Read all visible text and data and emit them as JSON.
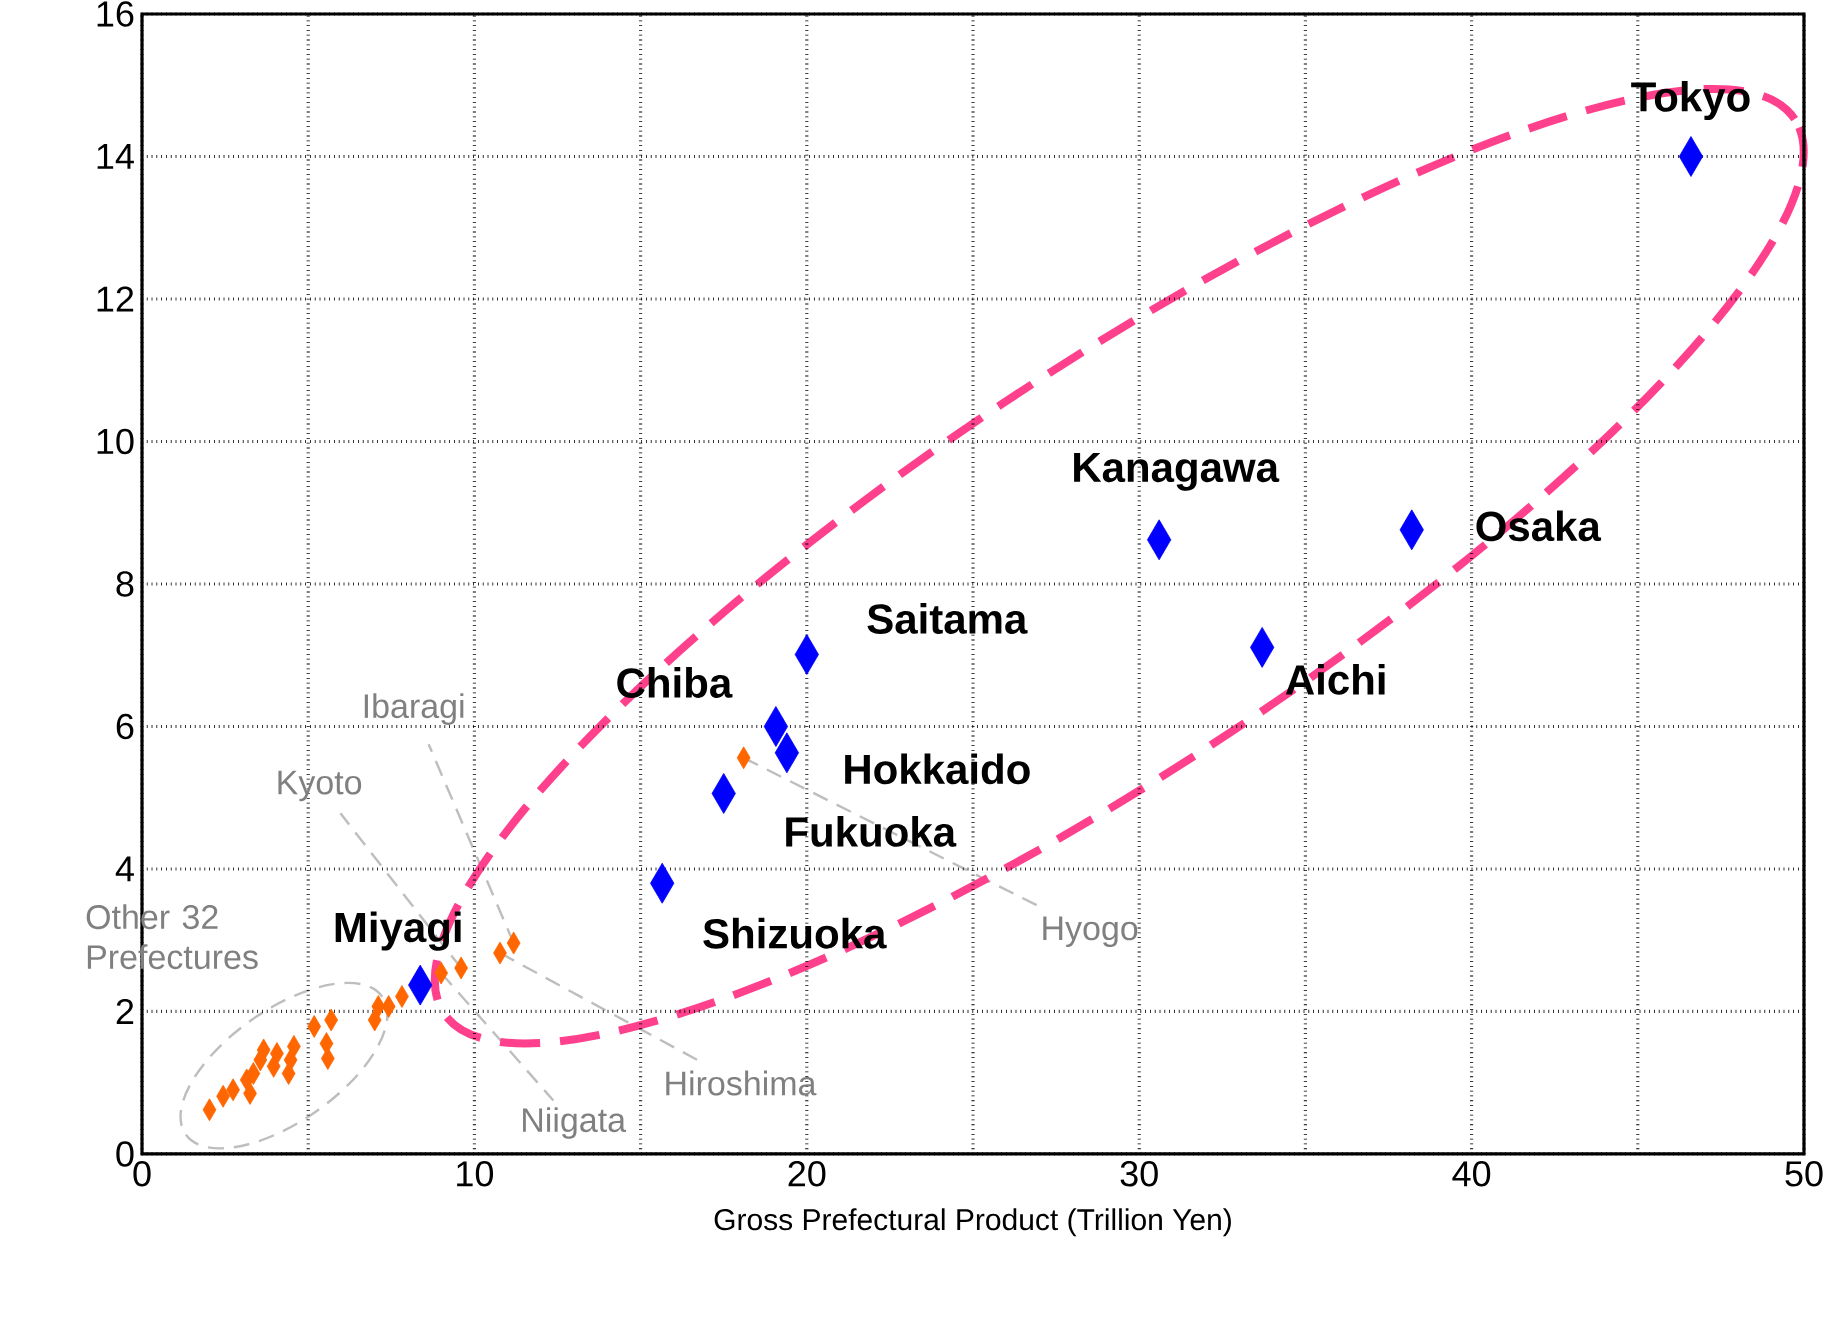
{
  "chart_data": {
    "type": "scatter",
    "xlabel": "Gross Prefectural Product (Trillion Yen)",
    "xlim": [
      0,
      50
    ],
    "ylim": [
      0,
      16
    ],
    "xticks": [
      0,
      {
        "value": 5,
        "label": null
      },
      10,
      {
        "value": 15,
        "label": null
      },
      20,
      {
        "value": 25,
        "label": null
      },
      30,
      {
        "value": 35,
        "label": null
      },
      40,
      {
        "value": 45,
        "label": null
      },
      50
    ],
    "yticks": [
      0,
      2,
      4,
      6,
      8,
      10,
      12,
      14,
      16
    ],
    "grid": true,
    "marker": "diamond",
    "series": [
      {
        "color": "#ff6600",
        "x": [
          18.1,
          11.18,
          10.77,
          9.6,
          9.0,
          7.82,
          7.42,
          7.11,
          7.0,
          5.69,
          5.18,
          5.55,
          5.59,
          4.57,
          4.47,
          4.41,
          4.06,
          3.96,
          3.66,
          3.56,
          3.35,
          3.15,
          3.25,
          2.74,
          2.44,
          2.03
        ],
        "values": [
          5.56,
          2.96,
          2.82,
          2.61,
          2.54,
          2.21,
          2.07,
          2.07,
          1.88,
          1.88,
          1.79,
          1.55,
          1.34,
          1.51,
          1.32,
          1.13,
          1.41,
          1.23,
          1.46,
          1.32,
          1.13,
          1.04,
          0.85,
          0.9,
          0.81,
          0.62
        ]
      },
      {
        "color": "#0000ff",
        "x": [
          46.6,
          30.6,
          38.2,
          33.7,
          20.0,
          19.07,
          19.4,
          17.5,
          15.65,
          8.37
        ],
        "values": [
          14.0,
          8.62,
          8.76,
          7.11,
          7.01,
          6.0,
          5.63,
          5.06,
          3.8,
          2.37
        ]
      }
    ],
    "annotations": [
      {
        "text": "Tokyo",
        "x": 46.6,
        "y": 14.0
      },
      {
        "text": "Kanagawa",
        "x": 30.6,
        "y": 8.62
      },
      {
        "text": "Osaka",
        "x": 38.2,
        "y": 8.76
      },
      {
        "text": "Aichi",
        "x": 33.7,
        "y": 7.11
      },
      {
        "text": "Saitama",
        "x": 20.0,
        "y": 7.01
      },
      {
        "text": "Chiba",
        "x": 19.07,
        "y": 6.0
      },
      {
        "text": "Hokkaido",
        "x": 19.4,
        "y": 5.63
      },
      {
        "text": "Fukuoka",
        "x": 17.5,
        "y": 5.06
      },
      {
        "text": "Shizuoka",
        "x": 15.65,
        "y": 3.8
      },
      {
        "text": "Miyagi",
        "x": 8.37,
        "y": 2.37
      },
      {
        "text": "Hyogo",
        "x": 18.1,
        "y": 5.56
      },
      {
        "text": "Ibaragi",
        "x": 11.18,
        "y": 2.96
      },
      {
        "text": "Kyoto",
        "x": 9.6,
        "y": 2.61
      },
      {
        "text": "Hiroshima",
        "x": 10.77,
        "y": 2.82
      },
      {
        "text": "Niigata",
        "x": 9.0,
        "y": 2.54
      },
      "Other 32 Prefectures"
    ]
  }
}
